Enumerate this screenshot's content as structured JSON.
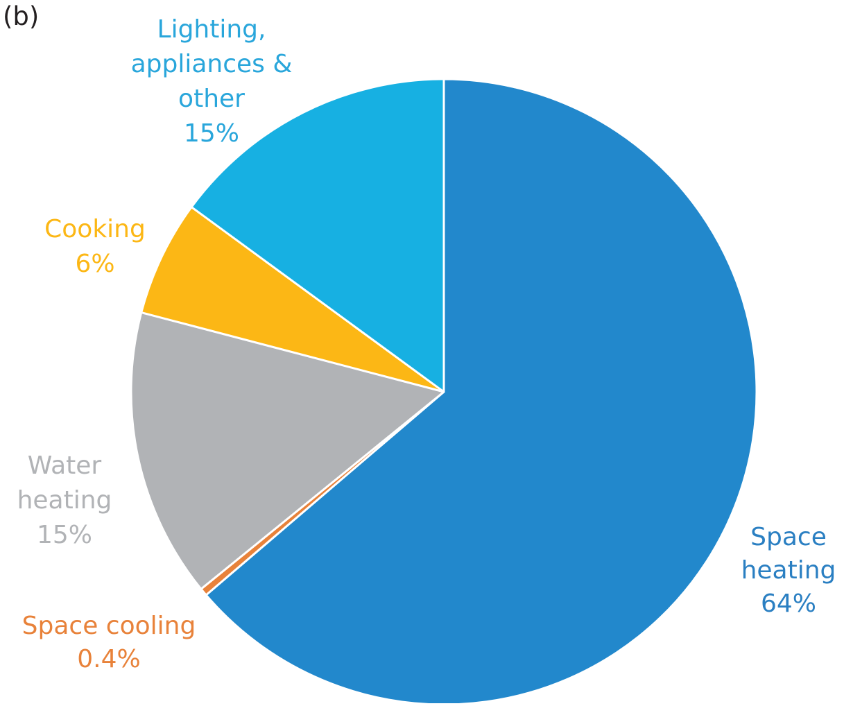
{
  "panel_label": "(b)",
  "chart_data": {
    "type": "pie",
    "title": "",
    "start": "12 o'clock, clockwise",
    "slices": [
      {
        "name": "Space heating",
        "label_lines": [
          "Space",
          "heating",
          "64%"
        ],
        "value": 64,
        "color": "#2288cc"
      },
      {
        "name": "Space cooling",
        "label_lines": [
          "Space cooling",
          "0.4%"
        ],
        "value": 0.4,
        "color": "#e8823a"
      },
      {
        "name": "Water heating",
        "label_lines": [
          "Water",
          "heating",
          "15%"
        ],
        "value": 15,
        "color": "#b1b3b6"
      },
      {
        "name": "Cooking",
        "label_lines": [
          "Cooking",
          "6%"
        ],
        "value": 6,
        "color": "#fcb715"
      },
      {
        "name": "Lighting, appliances & other",
        "label_lines": [
          "Lighting,",
          "appliances &",
          "other",
          "15%"
        ],
        "value": 15,
        "color": "#17b0e2"
      }
    ]
  }
}
